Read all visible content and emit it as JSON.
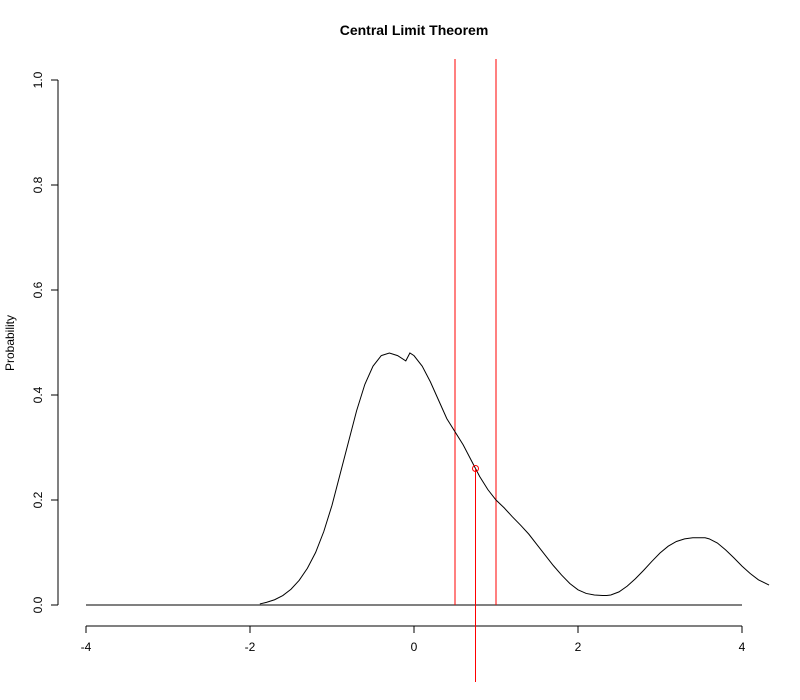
{
  "chart_data": {
    "type": "line",
    "title": "Central Limit Theorem",
    "xlabel": "",
    "ylabel": "Probability",
    "xlim": [
      -4,
      4.3
    ],
    "ylim": [
      0,
      1
    ],
    "x_ticks": [
      -4,
      -2,
      0,
      2,
      4
    ],
    "x_tick_labels": [
      "-4",
      "-2",
      "0",
      "2",
      "4"
    ],
    "y_ticks": [
      0,
      0.2,
      0.4,
      0.6,
      0.8,
      1
    ],
    "y_tick_labels": [
      "0.0",
      "0.2",
      "0.4",
      "0.6",
      "0.8",
      "1.0"
    ],
    "grid": false,
    "series": [
      {
        "x": [
          -1.88,
          -1.8,
          -1.7,
          -1.6,
          -1.5,
          -1.4,
          -1.3,
          -1.2,
          -1.1,
          -1.0,
          -0.9,
          -0.8,
          -0.7,
          -0.6,
          -0.5,
          -0.4,
          -0.3,
          -0.2,
          -0.1,
          -0.05,
          0.0,
          0.1,
          0.2,
          0.3,
          0.4,
          0.5,
          0.6,
          0.7,
          0.75,
          0.8,
          0.9,
          1.0,
          1.1,
          1.2,
          1.3,
          1.4,
          1.5,
          1.6,
          1.7,
          1.8,
          1.9,
          2.0,
          2.1,
          2.2,
          2.3,
          2.35,
          2.4,
          2.5,
          2.6,
          2.7,
          2.8,
          2.9,
          3.0,
          3.1,
          3.2,
          3.3,
          3.4,
          3.5,
          3.55,
          3.6,
          3.7,
          3.8,
          3.9,
          4.0,
          4.1,
          4.2,
          4.33
        ],
        "y": [
          0.002,
          0.005,
          0.01,
          0.018,
          0.03,
          0.047,
          0.07,
          0.1,
          0.14,
          0.19,
          0.25,
          0.31,
          0.37,
          0.42,
          0.455,
          0.475,
          0.48,
          0.475,
          0.465,
          0.48,
          0.475,
          0.455,
          0.425,
          0.39,
          0.355,
          0.33,
          0.305,
          0.275,
          0.26,
          0.245,
          0.22,
          0.2,
          0.185,
          0.168,
          0.152,
          0.135,
          0.115,
          0.095,
          0.075,
          0.057,
          0.041,
          0.029,
          0.022,
          0.019,
          0.018,
          0.018,
          0.019,
          0.025,
          0.036,
          0.05,
          0.066,
          0.083,
          0.099,
          0.112,
          0.121,
          0.126,
          0.128,
          0.128,
          0.128,
          0.126,
          0.118,
          0.105,
          0.09,
          0.074,
          0.06,
          0.048,
          0.038
        ]
      }
    ],
    "baseline": {
      "x": [
        -4,
        4
      ],
      "y": 0
    },
    "vlines": [
      0.5,
      1.0
    ],
    "marker": {
      "x": 0.75,
      "y": 0.26
    }
  }
}
